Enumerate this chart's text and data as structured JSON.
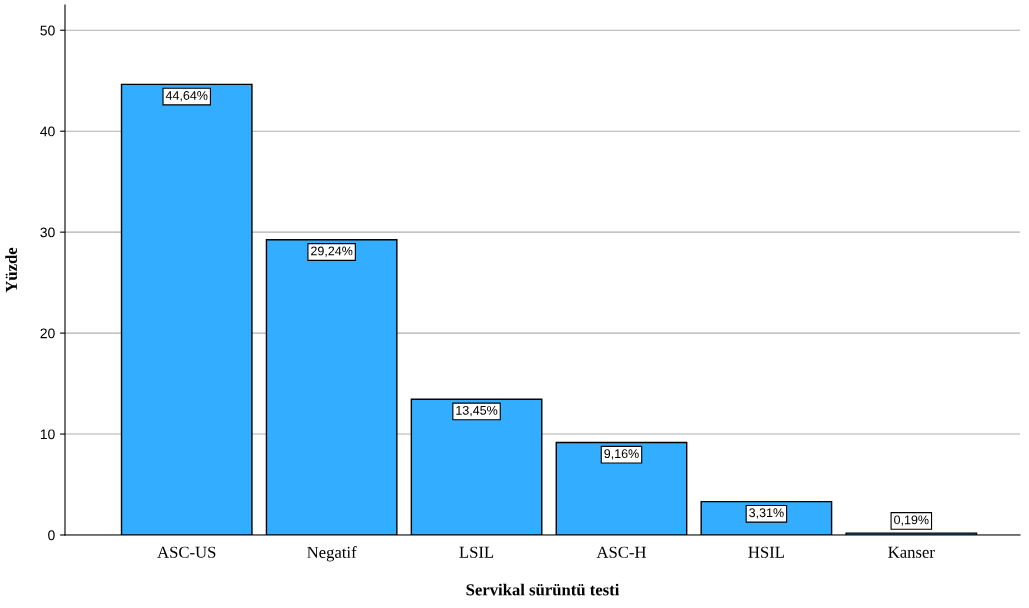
{
  "chart_data": {
    "type": "bar",
    "xlabel": "Servikal sürüntü testi",
    "ylabel": "Yüzde",
    "categories": [
      "ASC-US",
      "Negatif",
      "LSIL",
      "ASC-H",
      "HSIL",
      "Kanser"
    ],
    "values": [
      44.64,
      29.24,
      13.45,
      9.16,
      3.31,
      0.19
    ],
    "value_labels": [
      "44,64%",
      "29,24%",
      "13,45%",
      "9,16%",
      "3,31%",
      "0,19%"
    ],
    "color": "#33adff",
    "ylim": [
      0,
      52.5
    ],
    "yticks": [
      0,
      10,
      20,
      30,
      40,
      50
    ],
    "grid": "y",
    "legend": false
  }
}
